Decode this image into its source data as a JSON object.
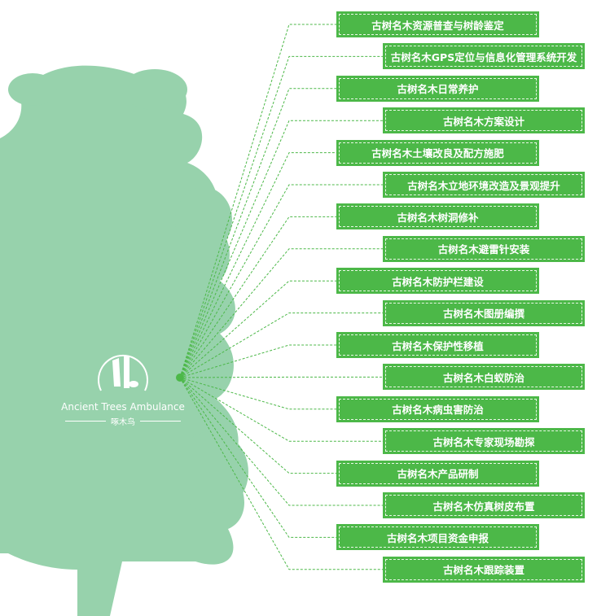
{
  "logo": {
    "english": "Ancient Trees Ambulance",
    "chinese": "啄木鸟"
  },
  "colors": {
    "box": "#4cb848",
    "tree": "#97d2ac",
    "line": "#4cb848"
  },
  "services": [
    "古树名木资源普查与树龄鉴定",
    "古树名木GPS定位与信息化管理系统开发",
    "古树名木日常养护",
    "古树名木方案设计",
    "古树名木土壤改良及配方施肥",
    "古树名木立地环境改造及景观提升",
    "古树名木树洞修补",
    "古树名木避雷针安装",
    "古树名木防护栏建设",
    "古树名木图册编撰",
    "古树名木保护性移植",
    "古树名木白蚁防治",
    "古树名木病虫害防治",
    "古树名木专家现场勘探",
    "古树名木产品研制",
    "古树名木仿真树皮布置",
    "古树名木项目资金申报",
    "古树名木跟踪装置"
  ]
}
